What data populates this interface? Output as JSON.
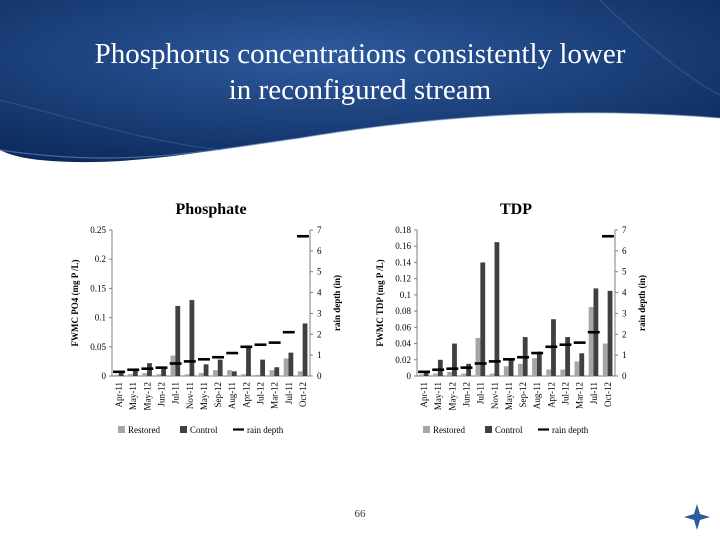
{
  "slide": {
    "title_line1": "Phosphorus concentrations consistently lower",
    "title_line2": "in reconfigured stream",
    "page_number": "66"
  },
  "colors": {
    "banner_dark": "#0c2a5c",
    "banner_light": "#2e5a9e",
    "restored": "#a6a6a6",
    "control": "#404040",
    "rain": "#000000"
  },
  "chart_data": [
    {
      "type": "bar",
      "title": "Phosphate",
      "ylabel": "FWMC PO4 (mg P /L)",
      "y2label": "rain depth (in)",
      "categories": [
        "Apr-11",
        "May-11",
        "May-12",
        "Jun-12",
        "Jul-11",
        "Nov-11",
        "May-11",
        "Sep-12",
        "Aug-11",
        "Apr-12",
        "Jul-12",
        "Mar-12",
        "Jul-11",
        "Oct-12"
      ],
      "yticks": [
        "0",
        "0.05",
        "0.1",
        "0.15",
        "0.2",
        "0.25"
      ],
      "ylim": [
        0,
        0.25
      ],
      "y2ticks": [
        "0",
        "1",
        "2",
        "3",
        "4",
        "5",
        "6",
        "7"
      ],
      "y2lim": [
        0,
        7
      ],
      "series": [
        {
          "name": "Restored",
          "kind": "bar",
          "values": [
            0.002,
            0.003,
            0.005,
            0.003,
            0.035,
            0.003,
            0.005,
            0.01,
            0.01,
            0.003,
            0.002,
            0.01,
            0.03,
            0.008
          ]
        },
        {
          "name": "Control",
          "kind": "bar",
          "values": [
            0.005,
            0.01,
            0.022,
            0.012,
            0.12,
            0.13,
            0.02,
            0.028,
            0.008,
            0.052,
            0.028,
            0.015,
            0.04,
            0.09
          ]
        },
        {
          "name": "rain depth",
          "kind": "marker",
          "values": [
            0.2,
            0.3,
            0.35,
            0.4,
            0.6,
            0.7,
            0.8,
            0.9,
            1.1,
            1.4,
            1.5,
            1.6,
            2.1,
            6.7
          ]
        }
      ],
      "legend": "bottom"
    },
    {
      "type": "bar",
      "title": "TDP",
      "ylabel": "FWMC TDP (mg P /L)",
      "y2label": "rain depth (in)",
      "categories": [
        "Apr-11",
        "May-11",
        "May-12",
        "Jun-12",
        "Jul-11",
        "Nov-11",
        "May-11",
        "Sep-12",
        "Aug-11",
        "Apr-12",
        "Jul-12",
        "Mar-12",
        "Jul-11",
        "Oct-12"
      ],
      "yticks": [
        "0",
        "0.02",
        "0.04",
        "0.06",
        "0.08",
        "0.1",
        "0.12",
        "0.14",
        "0.16",
        "0.18"
      ],
      "ylim": [
        0,
        0.18
      ],
      "y2ticks": [
        "0",
        "1",
        "2",
        "3",
        "4",
        "5",
        "6",
        "7"
      ],
      "y2lim": [
        0,
        7
      ],
      "series": [
        {
          "name": "Restored",
          "kind": "bar",
          "values": [
            0.002,
            0.003,
            0.005,
            0.003,
            0.047,
            0.003,
            0.012,
            0.015,
            0.022,
            0.008,
            0.008,
            0.018,
            0.085,
            0.04
          ]
        },
        {
          "name": "Control",
          "kind": "bar",
          "values": [
            0.005,
            0.02,
            0.04,
            0.015,
            0.14,
            0.165,
            0.02,
            0.048,
            0.03,
            0.07,
            0.048,
            0.028,
            0.108,
            0.105
          ]
        },
        {
          "name": "rain depth",
          "kind": "marker",
          "values": [
            0.2,
            0.3,
            0.35,
            0.4,
            0.6,
            0.7,
            0.8,
            0.9,
            1.1,
            1.4,
            1.5,
            1.6,
            2.1,
            6.7
          ]
        }
      ],
      "legend": "bottom"
    }
  ]
}
